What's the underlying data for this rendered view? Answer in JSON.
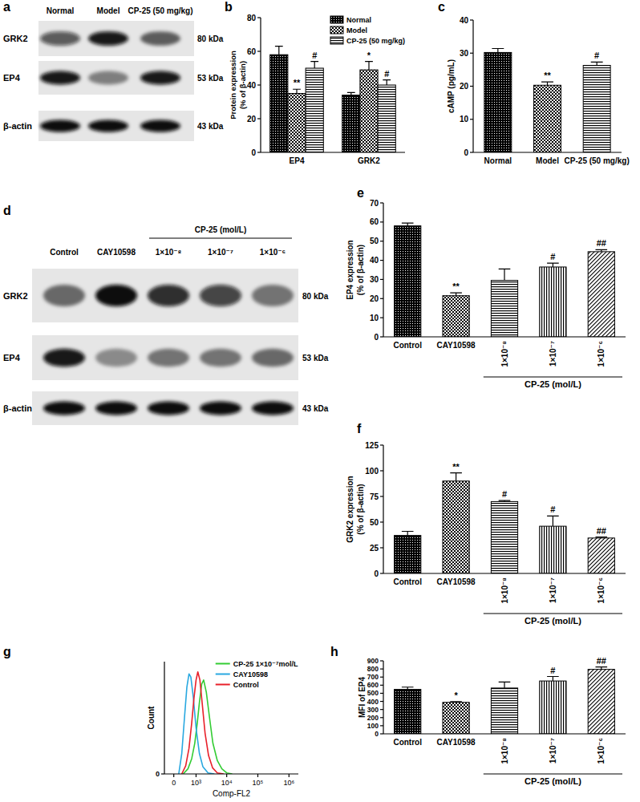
{
  "panel_labels": [
    "a",
    "b",
    "c",
    "d",
    "e",
    "f",
    "g",
    "h"
  ],
  "blots": [
    {
      "lanes": [
        "Normal",
        "Model",
        "CP-25 (50 mg/kg)"
      ],
      "rows": [
        {
          "name": "GRK2",
          "size": "80 kDa"
        },
        {
          "name": "EP4",
          "size": "53 kDa"
        },
        {
          "name": "β-actin",
          "size": "43 kDa"
        }
      ]
    },
    {
      "lane_group": "CP-25 (mol/L)",
      "lanes": [
        "Control",
        "CAY10598",
        "1×10⁻⁸",
        "1×10⁻⁷",
        "1×10⁻⁶"
      ],
      "rows": [
        {
          "name": "GRK2",
          "size": "80 kDa"
        },
        {
          "name": "EP4",
          "size": "53 kDa"
        },
        {
          "name": "β-actin",
          "size": "43 kDa"
        }
      ]
    }
  ],
  "chart_data": [
    {
      "type": "bar",
      "y_label": [
        "Protein expression",
        "(% of β-actin)"
      ],
      "categories": [
        "EP4",
        "GRK2"
      ],
      "series": [
        {
          "name": "Normal",
          "color": "#000000",
          "values": [
            58,
            34
          ],
          "errors": [
            5,
            1.5
          ]
        },
        {
          "name": "Model",
          "color": "#000000",
          "values": [
            35,
            49
          ],
          "errors": [
            2.5,
            5
          ],
          "annotations": [
            "**",
            "*"
          ]
        },
        {
          "name": "CP-25 (50 mg/kg)",
          "color": "#000000",
          "values": [
            50,
            40
          ],
          "errors": [
            4,
            3
          ],
          "annotations": [
            "#",
            "#"
          ]
        }
      ],
      "ylim": [
        0,
        80
      ],
      "yticks": [
        0,
        20,
        40,
        60,
        80
      ],
      "legend": "upper right"
    },
    {
      "type": "bar",
      "y_label": "cAMP (pg/mL)",
      "categories": [
        "Normal",
        "Model",
        "CP-25 (50 mg/kg)"
      ],
      "values": [
        30.2,
        20.3,
        26.3
      ],
      "errors": [
        1.2,
        1,
        1
      ],
      "annotations": [
        null,
        "**",
        "#"
      ],
      "color": "#000000",
      "ylim": [
        0,
        40
      ],
      "yticks": [
        0,
        10,
        20,
        30,
        40
      ]
    },
    {
      "type": "bar",
      "y_label": [
        "EP4 expression",
        "(% of β-actin)"
      ],
      "x_label": "CP-25 (mol/L)",
      "categories": [
        "Control",
        "CAY10598",
        "1×10⁻⁸",
        "1×10⁻⁷",
        "1×10⁻⁶"
      ],
      "values": [
        58,
        21.5,
        29.5,
        36.5,
        44.5
      ],
      "errors": [
        1.5,
        1.5,
        6,
        2,
        1
      ],
      "annotations": [
        null,
        "**",
        null,
        "#",
        "##"
      ],
      "color": "#000000",
      "ylim": [
        0,
        70
      ],
      "yticks": [
        0,
        10,
        20,
        30,
        40,
        50,
        60,
        70
      ]
    },
    {
      "type": "bar",
      "y_label": [
        "GRK2 expression",
        "(% of β-actin)"
      ],
      "x_label": "CP-25 (mol/L)",
      "categories": [
        "Control",
        "CAY10598",
        "1×10⁻⁸",
        "1×10⁻⁷",
        "1×10⁻⁶"
      ],
      "values": [
        37,
        90,
        70,
        46,
        34.5
      ],
      "errors": [
        4,
        8,
        1,
        10,
        1
      ],
      "annotations": [
        null,
        "**",
        "#",
        "#",
        "##"
      ],
      "color": "#000000",
      "ylim": [
        0,
        125
      ],
      "yticks": [
        0,
        25,
        50,
        75,
        100,
        125
      ]
    },
    {
      "type": "line",
      "x_label": "Comp-FL2",
      "y_label": "Count",
      "log": "x",
      "xlim": [
        -300,
        2000000
      ],
      "xticks": [
        0,
        {
          "value": 1000,
          "label": "10³"
        },
        {
          "value": 10000,
          "label": "10⁴"
        },
        {
          "value": 100000,
          "label": "10⁵"
        },
        {
          "value": 1000000,
          "label": "10⁶"
        }
      ],
      "ylim": [
        0,
        110
      ],
      "yticks": [
        0
      ],
      "legend": "upper right",
      "series": [
        {
          "name": "CP-25 1×10⁻⁷mol/L",
          "color": "#33cc33",
          "x": [
            300,
            500,
            700,
            900,
            1100,
            1300,
            1550,
            1800,
            2200,
            2800,
            3600,
            5000,
            7000,
            10000,
            15000
          ],
          "values": [
            0,
            5,
            15,
            30,
            50,
            70,
            88,
            92,
            80,
            55,
            30,
            13,
            5,
            1,
            0
          ]
        },
        {
          "name": "CAY10598",
          "color": "#29a8e0",
          "x": [
            150,
            250,
            350,
            450,
            550,
            650,
            800,
            1000,
            1300,
            1700,
            2500,
            4000
          ],
          "values": [
            0,
            20,
            55,
            85,
            98,
            95,
            75,
            45,
            20,
            7,
            1,
            0
          ]
        },
        {
          "name": "Control",
          "color": "#e8202a",
          "x": [
            250,
            400,
            550,
            700,
            850,
            1000,
            1150,
            1350,
            1600,
            2000,
            2600,
            3500,
            5000,
            8000
          ],
          "values": [
            0,
            8,
            25,
            50,
            75,
            92,
            100,
            92,
            70,
            40,
            18,
            6,
            1,
            0
          ]
        }
      ]
    },
    {
      "type": "bar",
      "y_label": "MFI of EP4",
      "x_label": "CP-25 (mol/L)",
      "categories": [
        "Control",
        "CAY10598",
        "1×10⁻⁸",
        "1×10⁻⁷",
        "1×10⁻⁶"
      ],
      "values": [
        548,
        388,
        565,
        652,
        795
      ],
      "errors": [
        28,
        8,
        75,
        55,
        30
      ],
      "annotations": [
        null,
        "*",
        null,
        "#",
        "##"
      ],
      "color": "#000000",
      "ylim": [
        0,
        900
      ],
      "yticks": [
        0,
        100,
        200,
        300,
        400,
        500,
        600,
        700,
        800,
        900
      ]
    }
  ]
}
